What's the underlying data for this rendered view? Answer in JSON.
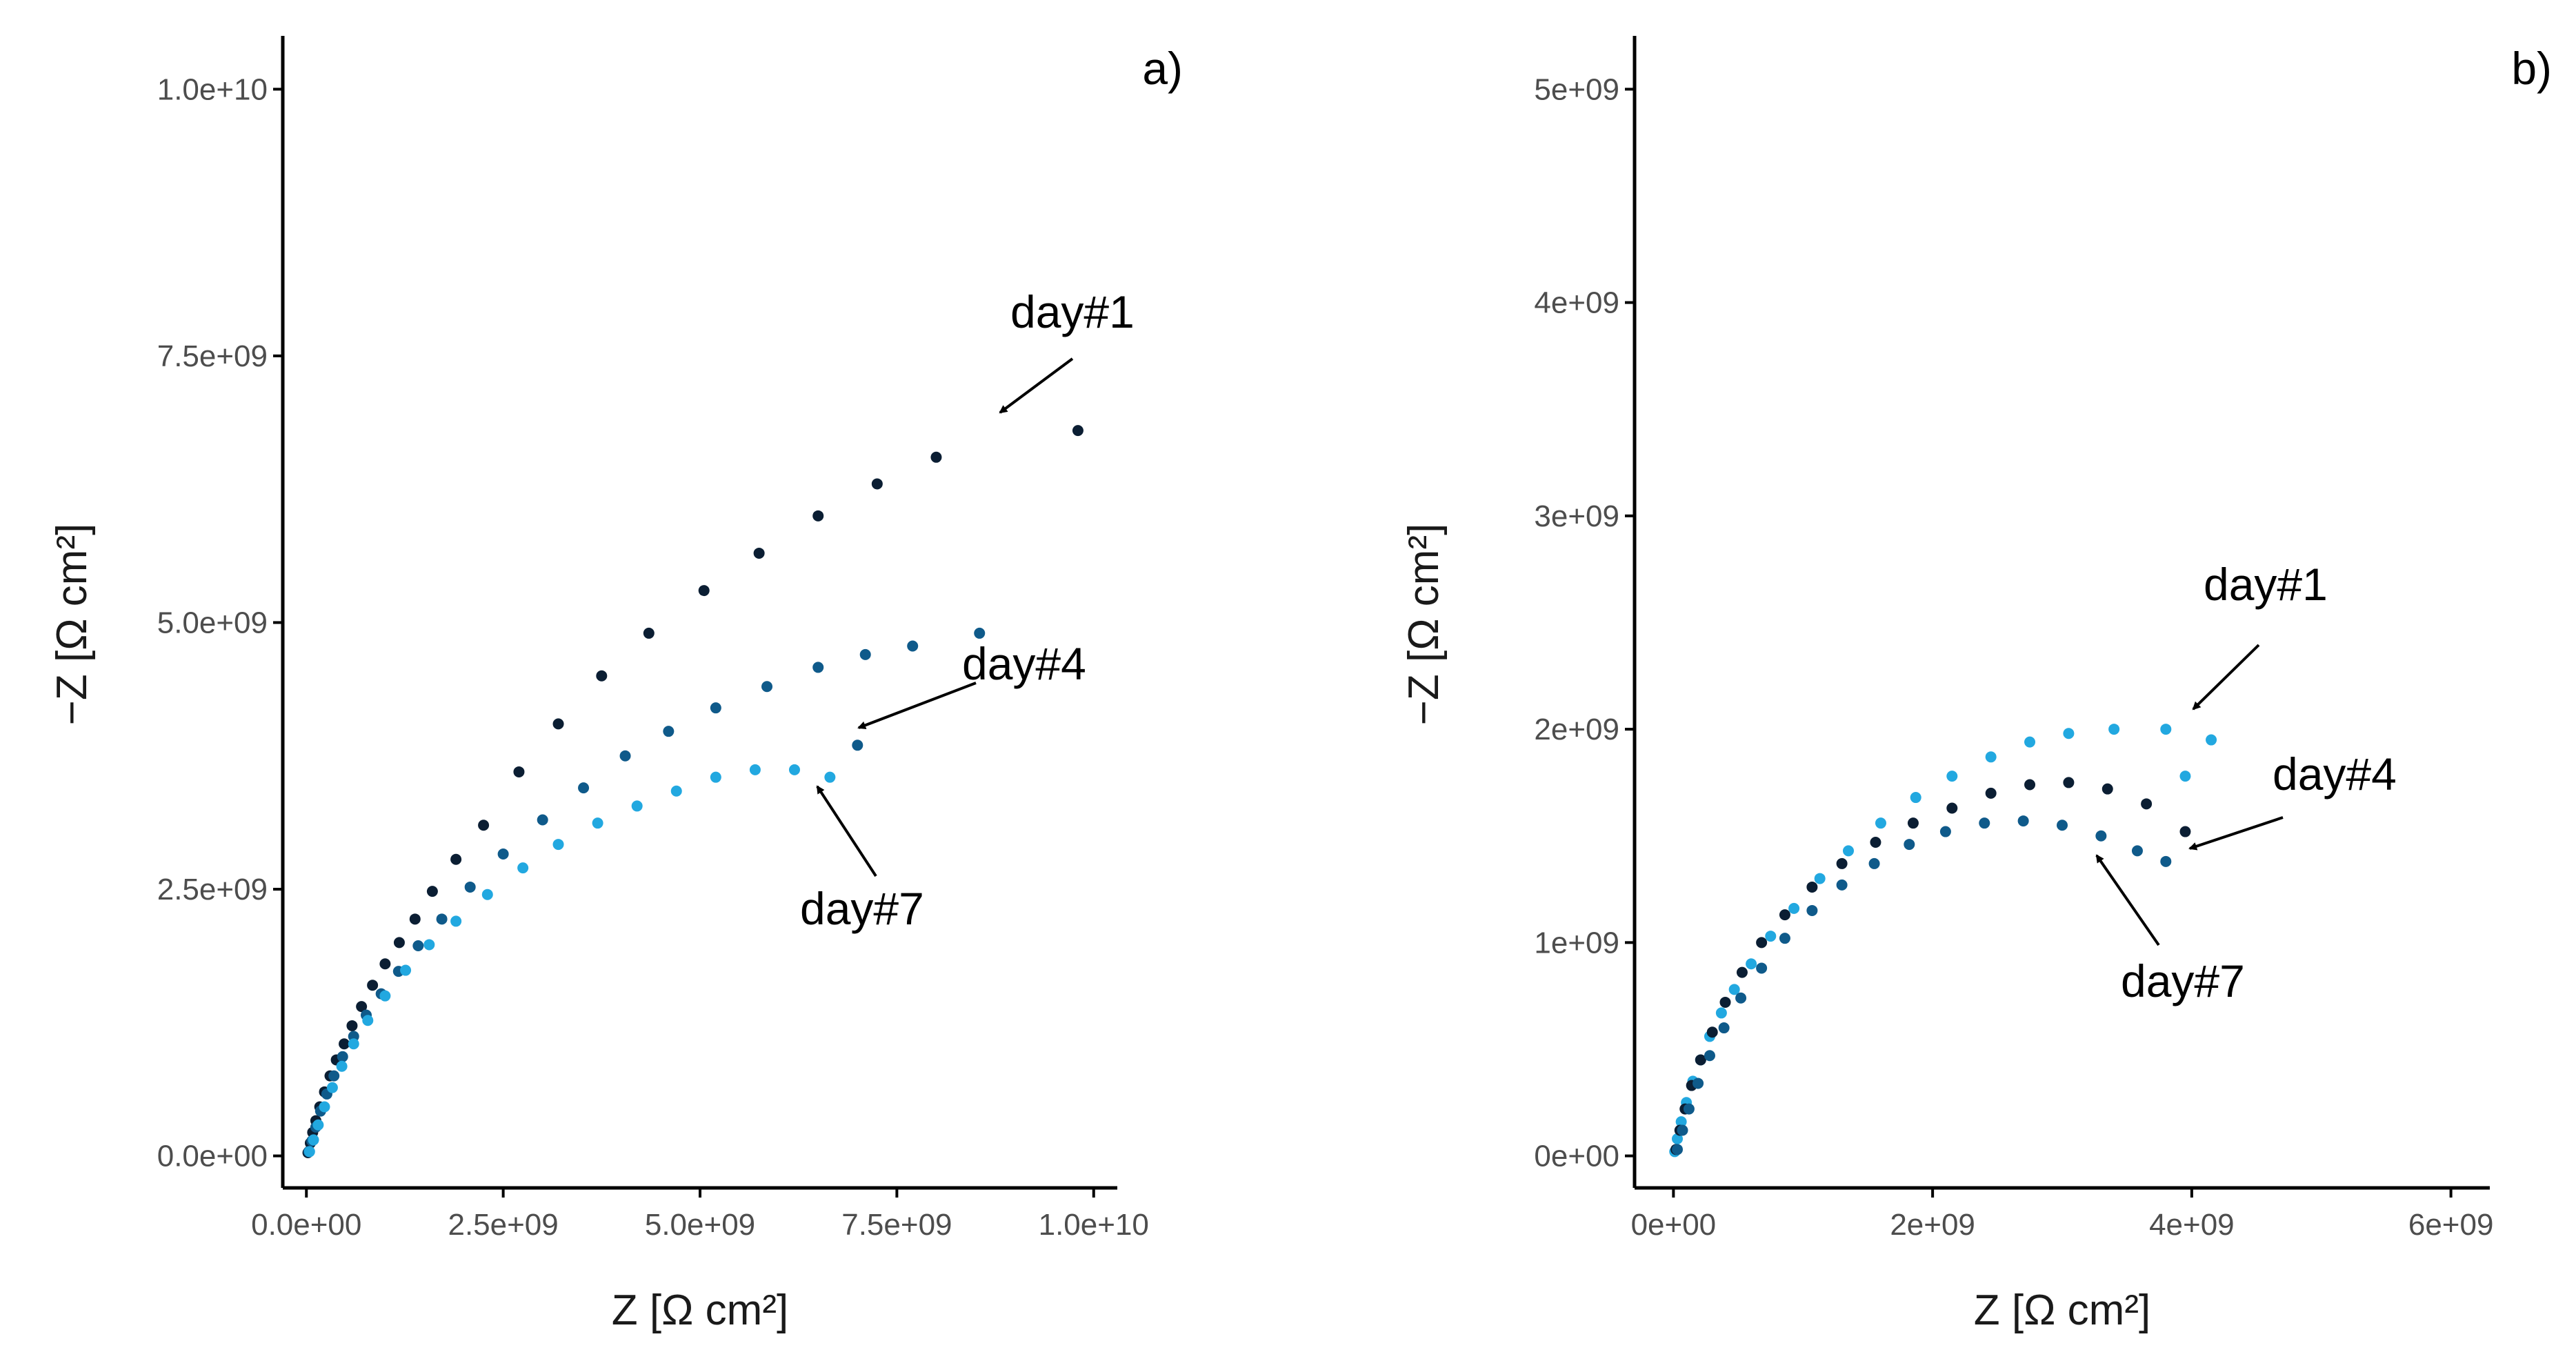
{
  "chart_data": [
    {
      "type": "scatter",
      "panel_label": "a)",
      "xlabel": "Z [Ω cm²]",
      "ylabel": "−Z [Ω cm²]",
      "xlim": [
        -300000000.0,
        10300000000.0
      ],
      "ylim": [
        -300000000.0,
        10500000000.0
      ],
      "xticks": [
        {
          "value": 0,
          "label": "0.0e+00"
        },
        {
          "value": 2500000000.0,
          "label": "2.5e+09"
        },
        {
          "value": 5000000000.0,
          "label": "5.0e+09"
        },
        {
          "value": 7500000000.0,
          "label": "7.5e+09"
        },
        {
          "value": 10000000000.0,
          "label": "1.0e+10"
        }
      ],
      "yticks": [
        {
          "value": 0,
          "label": "0.0e+00"
        },
        {
          "value": 2500000000.0,
          "label": "2.5e+09"
        },
        {
          "value": 5000000000.0,
          "label": "5.0e+09"
        },
        {
          "value": 7500000000.0,
          "label": "7.5e+09"
        },
        {
          "value": 10000000000.0,
          "label": "1.0e+10"
        }
      ],
      "grid": false,
      "series": [
        {
          "name": "day#1",
          "color": "#0b1e33",
          "points": [
            [
              20000000.0,
              30000000.0
            ],
            [
              50000000.0,
              120000000.0
            ],
            [
              80000000.0,
              220000000.0
            ],
            [
              120000000.0,
              330000000.0
            ],
            [
              170000000.0,
              460000000.0
            ],
            [
              230000000.0,
              600000000.0
            ],
            [
              300000000.0,
              750000000.0
            ],
            [
              380000000.0,
              900000000.0
            ],
            [
              480000000.0,
              1050000000.0
            ],
            [
              580000000.0,
              1220000000.0
            ],
            [
              700000000.0,
              1400000000.0
            ],
            [
              840000000.0,
              1600000000.0
            ],
            [
              1000000000.0,
              1800000000.0
            ],
            [
              1180000000.0,
              2000000000.0
            ],
            [
              1380000000.0,
              2220000000.0
            ],
            [
              1600000000.0,
              2480000000.0
            ],
            [
              1900000000.0,
              2780000000.0
            ],
            [
              2250000000.0,
              3100000000.0
            ],
            [
              2700000000.0,
              3600000000.0
            ],
            [
              3200000000.0,
              4050000000.0
            ],
            [
              3750000000.0,
              4500000000.0
            ],
            [
              4350000000.0,
              4900000000.0
            ],
            [
              5050000000.0,
              5300000000.0
            ],
            [
              5750000000.0,
              5650000000.0
            ],
            [
              6500000000.0,
              6000000000.0
            ],
            [
              7250000000.0,
              6300000000.0
            ],
            [
              8000000000.0,
              6550000000.0
            ],
            [
              9800000000.0,
              6800000000.0
            ]
          ]
        },
        {
          "name": "day#4",
          "color": "#0f5a8a",
          "points": [
            [
              30000000.0,
              40000000.0
            ],
            [
              70000000.0,
              140000000.0
            ],
            [
              120000000.0,
              270000000.0
            ],
            [
              180000000.0,
              420000000.0
            ],
            [
              260000000.0,
              580000000.0
            ],
            [
              350000000.0,
              750000000.0
            ],
            [
              460000000.0,
              930000000.0
            ],
            [
              600000000.0,
              1120000000.0
            ],
            [
              760000000.0,
              1320000000.0
            ],
            [
              950000000.0,
              1520000000.0
            ],
            [
              1170000000.0,
              1730000000.0
            ],
            [
              1420000000.0,
              1970000000.0
            ],
            [
              1720000000.0,
              2220000000.0
            ],
            [
              2080000000.0,
              2520000000.0
            ],
            [
              2500000000.0,
              2830000000.0
            ],
            [
              3000000000.0,
              3150000000.0
            ],
            [
              3520000000.0,
              3450000000.0
            ],
            [
              4050000000.0,
              3750000000.0
            ],
            [
              4600000000.0,
              3980000000.0
            ],
            [
              5200000000.0,
              4200000000.0
            ],
            [
              5850000000.0,
              4400000000.0
            ],
            [
              6500000000.0,
              4580000000.0
            ],
            [
              7100000000.0,
              4700000000.0
            ],
            [
              7700000000.0,
              4780000000.0
            ],
            [
              8550000000.0,
              4900000000.0
            ],
            [
              7000000000.0,
              3850000000.0
            ]
          ]
        },
        {
          "name": "day#7",
          "color": "#22a8e0",
          "points": [
            [
              40000000.0,
              40000000.0
            ],
            [
              90000000.0,
              150000000.0
            ],
            [
              150000000.0,
              290000000.0
            ],
            [
              230000000.0,
              460000000.0
            ],
            [
              330000000.0,
              640000000.0
            ],
            [
              450000000.0,
              840000000.0
            ],
            [
              600000000.0,
              1050000000.0
            ],
            [
              780000000.0,
              1270000000.0
            ],
            [
              1000000000.0,
              1500000000.0
            ],
            [
              1260000000.0,
              1740000000.0
            ],
            [
              1560000000.0,
              1980000000.0
            ],
            [
              1900000000.0,
              2200000000.0
            ],
            [
              2300000000.0,
              2450000000.0
            ],
            [
              2750000000.0,
              2700000000.0
            ],
            [
              3200000000.0,
              2920000000.0
            ],
            [
              3700000000.0,
              3120000000.0
            ],
            [
              4200000000.0,
              3280000000.0
            ],
            [
              4700000000.0,
              3420000000.0
            ],
            [
              5200000000.0,
              3550000000.0
            ],
            [
              5700000000.0,
              3620000000.0
            ],
            [
              6200000000.0,
              3620000000.0
            ],
            [
              6650000000.0,
              3550000000.0
            ]
          ]
        }
      ],
      "annotations": [
        {
          "text": "day#1"
        },
        {
          "text": "day#4"
        },
        {
          "text": "day#7"
        }
      ]
    },
    {
      "type": "scatter",
      "panel_label": "b)",
      "xlabel": "Z [Ω cm²]",
      "ylabel": "−Z [Ω cm²]",
      "xlim": [
        -300000000.0,
        6300000000.0
      ],
      "ylim": [
        -150000000.0,
        5250000000.0
      ],
      "xticks": [
        {
          "value": 0,
          "label": "0e+00"
        },
        {
          "value": 2000000000.0,
          "label": "2e+09"
        },
        {
          "value": 4000000000.0,
          "label": "4e+09"
        },
        {
          "value": 6000000000.0,
          "label": "6e+09"
        }
      ],
      "yticks": [
        {
          "value": 0,
          "label": "0e+00"
        },
        {
          "value": 1000000000.0,
          "label": "1e+09"
        },
        {
          "value": 2000000000.0,
          "label": "2e+09"
        },
        {
          "value": 3000000000.0,
          "label": "3e+09"
        },
        {
          "value": 4000000000.0,
          "label": "4e+09"
        },
        {
          "value": 5000000000.0,
          "label": "5e+09"
        }
      ],
      "grid": false,
      "series": [
        {
          "name": "day#1",
          "color": "#22a8e0",
          "points": [
            [
              10000000.0,
              20000000.0
            ],
            [
              30000000.0,
              80000000.0
            ],
            [
              60000000.0,
              160000000.0
            ],
            [
              100000000.0,
              250000000.0
            ],
            [
              150000000.0,
              350000000.0
            ],
            [
              210000000.0,
              450000000.0
            ],
            [
              280000000.0,
              560000000.0
            ],
            [
              370000000.0,
              670000000.0
            ],
            [
              470000000.0,
              780000000.0
            ],
            [
              600000000.0,
              900000000.0
            ],
            [
              750000000.0,
              1030000000.0
            ],
            [
              930000000.0,
              1160000000.0
            ],
            [
              1130000000.0,
              1300000000.0
            ],
            [
              1350000000.0,
              1430000000.0
            ],
            [
              1600000000.0,
              1560000000.0
            ],
            [
              1870000000.0,
              1680000000.0
            ],
            [
              2150000000.0,
              1780000000.0
            ],
            [
              2450000000.0,
              1870000000.0
            ],
            [
              2750000000.0,
              1940000000.0
            ],
            [
              3050000000.0,
              1980000000.0
            ],
            [
              3400000000.0,
              2000000000.0
            ],
            [
              3800000000.0,
              2000000000.0
            ],
            [
              4150000000.0,
              1950000000.0
            ],
            [
              3950000000.0,
              1780000000.0
            ]
          ]
        },
        {
          "name": "day#4",
          "color": "#0b1e33",
          "points": [
            [
              20000000.0,
              30000000.0
            ],
            [
              50000000.0,
              120000000.0
            ],
            [
              90000000.0,
              220000000.0
            ],
            [
              140000000.0,
              330000000.0
            ],
            [
              210000000.0,
              450000000.0
            ],
            [
              300000000.0,
              580000000.0
            ],
            [
              400000000.0,
              720000000.0
            ],
            [
              530000000.0,
              860000000.0
            ],
            [
              680000000.0,
              1000000000.0
            ],
            [
              860000000.0,
              1130000000.0
            ],
            [
              1070000000.0,
              1260000000.0
            ],
            [
              1300000000.0,
              1370000000.0
            ],
            [
              1560000000.0,
              1470000000.0
            ],
            [
              1850000000.0,
              1560000000.0
            ],
            [
              2150000000.0,
              1630000000.0
            ],
            [
              2450000000.0,
              1700000000.0
            ],
            [
              2750000000.0,
              1740000000.0
            ],
            [
              3050000000.0,
              1750000000.0
            ],
            [
              3350000000.0,
              1720000000.0
            ],
            [
              3650000000.0,
              1650000000.0
            ],
            [
              3950000000.0,
              1520000000.0
            ]
          ]
        },
        {
          "name": "day#7",
          "color": "#0f5a8a",
          "points": [
            [
              30000000.0,
              30000000.0
            ],
            [
              70000000.0,
              120000000.0
            ],
            [
              120000000.0,
              220000000.0
            ],
            [
              190000000.0,
              340000000.0
            ],
            [
              280000000.0,
              470000000.0
            ],
            [
              390000000.0,
              600000000.0
            ],
            [
              520000000.0,
              740000000.0
            ],
            [
              680000000.0,
              880000000.0
            ],
            [
              860000000.0,
              1020000000.0
            ],
            [
              1070000000.0,
              1150000000.0
            ],
            [
              1300000000.0,
              1270000000.0
            ],
            [
              1550000000.0,
              1370000000.0
            ],
            [
              1820000000.0,
              1460000000.0
            ],
            [
              2100000000.0,
              1520000000.0
            ],
            [
              2400000000.0,
              1560000000.0
            ],
            [
              2700000000.0,
              1570000000.0
            ],
            [
              3000000000.0,
              1550000000.0
            ],
            [
              3300000000.0,
              1500000000.0
            ],
            [
              3580000000.0,
              1430000000.0
            ],
            [
              3800000000.0,
              1380000000.0
            ]
          ]
        }
      ],
      "annotations": [
        {
          "text": "day#1"
        },
        {
          "text": "day#4"
        },
        {
          "text": "day#7"
        }
      ]
    }
  ]
}
